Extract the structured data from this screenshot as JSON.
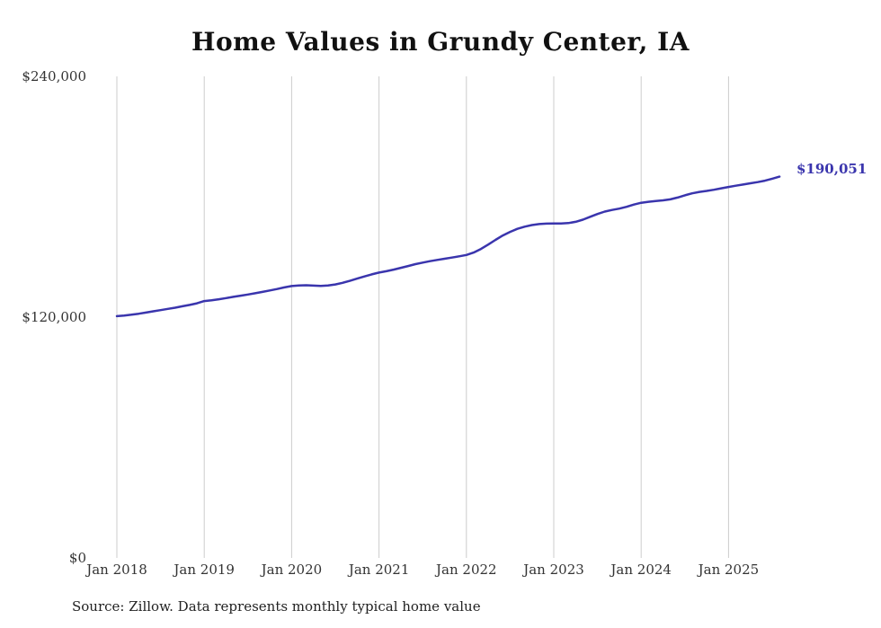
{
  "title": "Home Values in Grundy Center, IA",
  "source_note": "Source: Zillow. Data represents monthly typical home value",
  "end_label": "$190,051",
  "colors": {
    "line": "#3a35ad",
    "grid": "#cccccc",
    "text": "#333333"
  },
  "chart_data": {
    "type": "line",
    "title": "Home Values in Grundy Center, IA",
    "xlabel": "",
    "ylabel": "",
    "frequency": "monthly",
    "x_start": "Jan 2018",
    "x_end": "Aug 2025",
    "x_tick_labels": [
      "Jan 2018",
      "Jan 2019",
      "Jan 2020",
      "Jan 2021",
      "Jan 2022",
      "Jan 2023",
      "Jan 2024",
      "Jan 2025"
    ],
    "y_tick_labels": [
      "$0",
      "$120,000",
      "$240,000"
    ],
    "ylim": [
      0,
      240000
    ],
    "grid": "vertical-only",
    "legend": "none",
    "end_value": 190051,
    "series": [
      {
        "name": "Typical home value",
        "values": [
          120500,
          120800,
          121200,
          121700,
          122300,
          122900,
          123500,
          124100,
          124700,
          125400,
          126100,
          126900,
          128000,
          128400,
          128900,
          129500,
          130100,
          130700,
          131300,
          131900,
          132600,
          133300,
          134000,
          134800,
          135500,
          135800,
          135900,
          135700,
          135600,
          135800,
          136300,
          137100,
          138100,
          139200,
          140300,
          141300,
          142200,
          142900,
          143700,
          144600,
          145500,
          146400,
          147200,
          147900,
          148500,
          149100,
          149700,
          150300,
          151000,
          152200,
          154000,
          156200,
          158500,
          160700,
          162500,
          164000,
          165100,
          165900,
          166400,
          166600,
          166700,
          166700,
          166900,
          167500,
          168600,
          170000,
          171400,
          172600,
          173400,
          174100,
          175000,
          176100,
          177000,
          177500,
          177900,
          178200,
          178700,
          179600,
          180700,
          181700,
          182400,
          182900,
          183500,
          184200,
          184900,
          185500,
          186100,
          186700,
          187300,
          188000,
          189000,
          190051
        ]
      }
    ]
  }
}
